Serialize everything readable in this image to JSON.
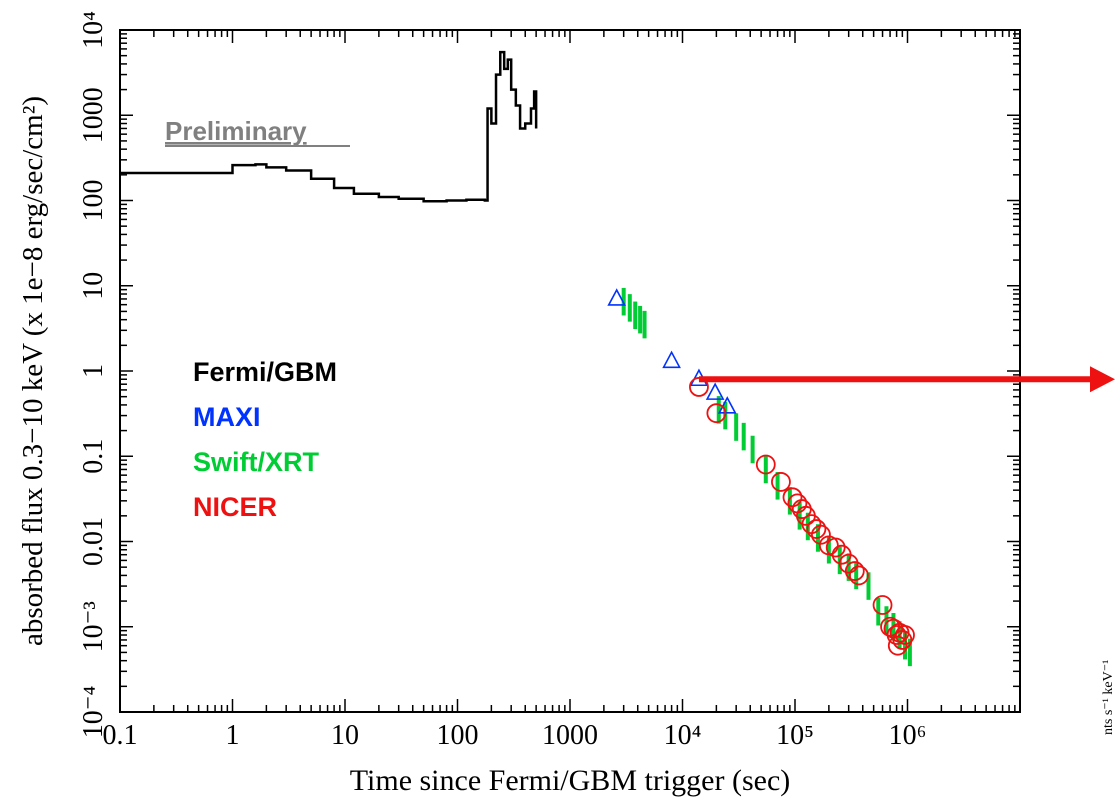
{
  "chart_data": {
    "type": "scatter",
    "xlabel": "Time since Fermi/GBM trigger (sec)",
    "ylabel": "absorbed flux 0.3−10 keV (x 1e−8 erg/sec/cm²)",
    "x_scale": "log",
    "y_scale": "log",
    "xlim": [
      0.1,
      10000000
    ],
    "ylim": [
      0.0001,
      10000
    ],
    "x_ticks": [
      {
        "value": 0.1,
        "label": "0.1"
      },
      {
        "value": 1,
        "label": "1"
      },
      {
        "value": 10,
        "label": "10"
      },
      {
        "value": 100,
        "label": "100"
      },
      {
        "value": 1000,
        "label": "1000"
      },
      {
        "value": 10000,
        "label": "10⁴"
      },
      {
        "value": 100000,
        "label": "10⁵"
      },
      {
        "value": 1000000,
        "label": "10⁶"
      }
    ],
    "y_ticks": [
      {
        "value": 0.0001,
        "label": "10⁻⁴"
      },
      {
        "value": 0.001,
        "label": "10⁻³"
      },
      {
        "value": 0.01,
        "label": "0.01"
      },
      {
        "value": 0.1,
        "label": "0.1"
      },
      {
        "value": 1,
        "label": "1"
      },
      {
        "value": 10,
        "label": "10"
      },
      {
        "value": 100,
        "label": "100"
      },
      {
        "value": 1000,
        "label": "1000"
      },
      {
        "value": 10000,
        "label": "10⁴"
      }
    ],
    "annotation": "Preliminary",
    "right_edge_label": "nts s⁻¹ keV⁻¹",
    "legend_position": "middle-left",
    "series": [
      {
        "name": "Fermi/GBM",
        "color": "#000000",
        "style": "step-line",
        "points": [
          [
            0.1,
            210
          ],
          [
            0.5,
            210
          ],
          [
            1,
            260
          ],
          [
            1.6,
            265
          ],
          [
            2,
            245
          ],
          [
            3,
            225
          ],
          [
            5,
            180
          ],
          [
            8,
            140
          ],
          [
            12,
            120
          ],
          [
            20,
            110
          ],
          [
            30,
            105
          ],
          [
            50,
            98
          ],
          [
            80,
            100
          ],
          [
            120,
            102
          ],
          [
            175,
            100
          ],
          [
            185,
            1200
          ],
          [
            200,
            800
          ],
          [
            220,
            3000
          ],
          [
            240,
            5500
          ],
          [
            260,
            3500
          ],
          [
            280,
            4500
          ],
          [
            300,
            2000
          ],
          [
            330,
            1300
          ],
          [
            360,
            700
          ],
          [
            400,
            800
          ],
          [
            450,
            1200
          ],
          [
            480,
            1900
          ],
          [
            500,
            700
          ]
        ]
      },
      {
        "name": "MAXI",
        "color": "#0033ff",
        "style": "triangle",
        "points": [
          [
            2600,
            7
          ],
          [
            8000,
            1.3
          ],
          [
            14000,
            0.8
          ],
          [
            19500,
            0.55
          ],
          [
            25000,
            0.38
          ]
        ]
      },
      {
        "name": "Swift/XRT",
        "color": "#00cc33",
        "style": "error-bar",
        "points": [
          [
            3000,
            6.5
          ],
          [
            3400,
            5.5
          ],
          [
            3800,
            4.5
          ],
          [
            4200,
            4.0
          ],
          [
            4600,
            3.5
          ],
          [
            21000,
            0.35
          ],
          [
            24000,
            0.3
          ],
          [
            30000,
            0.22
          ],
          [
            35000,
            0.17
          ],
          [
            42000,
            0.12
          ],
          [
            55000,
            0.07
          ],
          [
            70000,
            0.045
          ],
          [
            90000,
            0.03
          ],
          [
            110000,
            0.02
          ],
          [
            130000,
            0.015
          ],
          [
            160000,
            0.011
          ],
          [
            200000,
            0.008
          ],
          [
            250000,
            0.006
          ],
          [
            300000,
            0.005
          ],
          [
            350000,
            0.004
          ],
          [
            450000,
            0.003
          ],
          [
            550000,
            0.0015
          ],
          [
            650000,
            0.0012
          ],
          [
            750000,
            0.001
          ],
          [
            850000,
            0.0008
          ],
          [
            950000,
            0.0006
          ],
          [
            1050000,
            0.0005
          ]
        ]
      },
      {
        "name": "NICER",
        "color": "#ee1111",
        "style": "circle",
        "points": [
          [
            14000,
            0.65
          ],
          [
            20000,
            0.32
          ],
          [
            55000,
            0.08
          ],
          [
            75000,
            0.05
          ],
          [
            95000,
            0.033
          ],
          [
            105000,
            0.028
          ],
          [
            115000,
            0.024
          ],
          [
            125000,
            0.02
          ],
          [
            140000,
            0.016
          ],
          [
            155000,
            0.014
          ],
          [
            170000,
            0.012
          ],
          [
            200000,
            0.009
          ],
          [
            230000,
            0.0085
          ],
          [
            260000,
            0.007
          ],
          [
            300000,
            0.0055
          ],
          [
            340000,
            0.0045
          ],
          [
            370000,
            0.004
          ],
          [
            600000,
            0.0018
          ],
          [
            700000,
            0.001
          ],
          [
            750000,
            0.00095
          ],
          [
            800000,
            0.0008
          ],
          [
            850000,
            0.00085
          ],
          [
            900000,
            0.0007
          ],
          [
            950000,
            0.0008
          ],
          [
            820000,
            0.0006
          ]
        ]
      }
    ],
    "arrow": {
      "color": "#ee1111",
      "from_x": 14000,
      "y": 0.8
    }
  }
}
